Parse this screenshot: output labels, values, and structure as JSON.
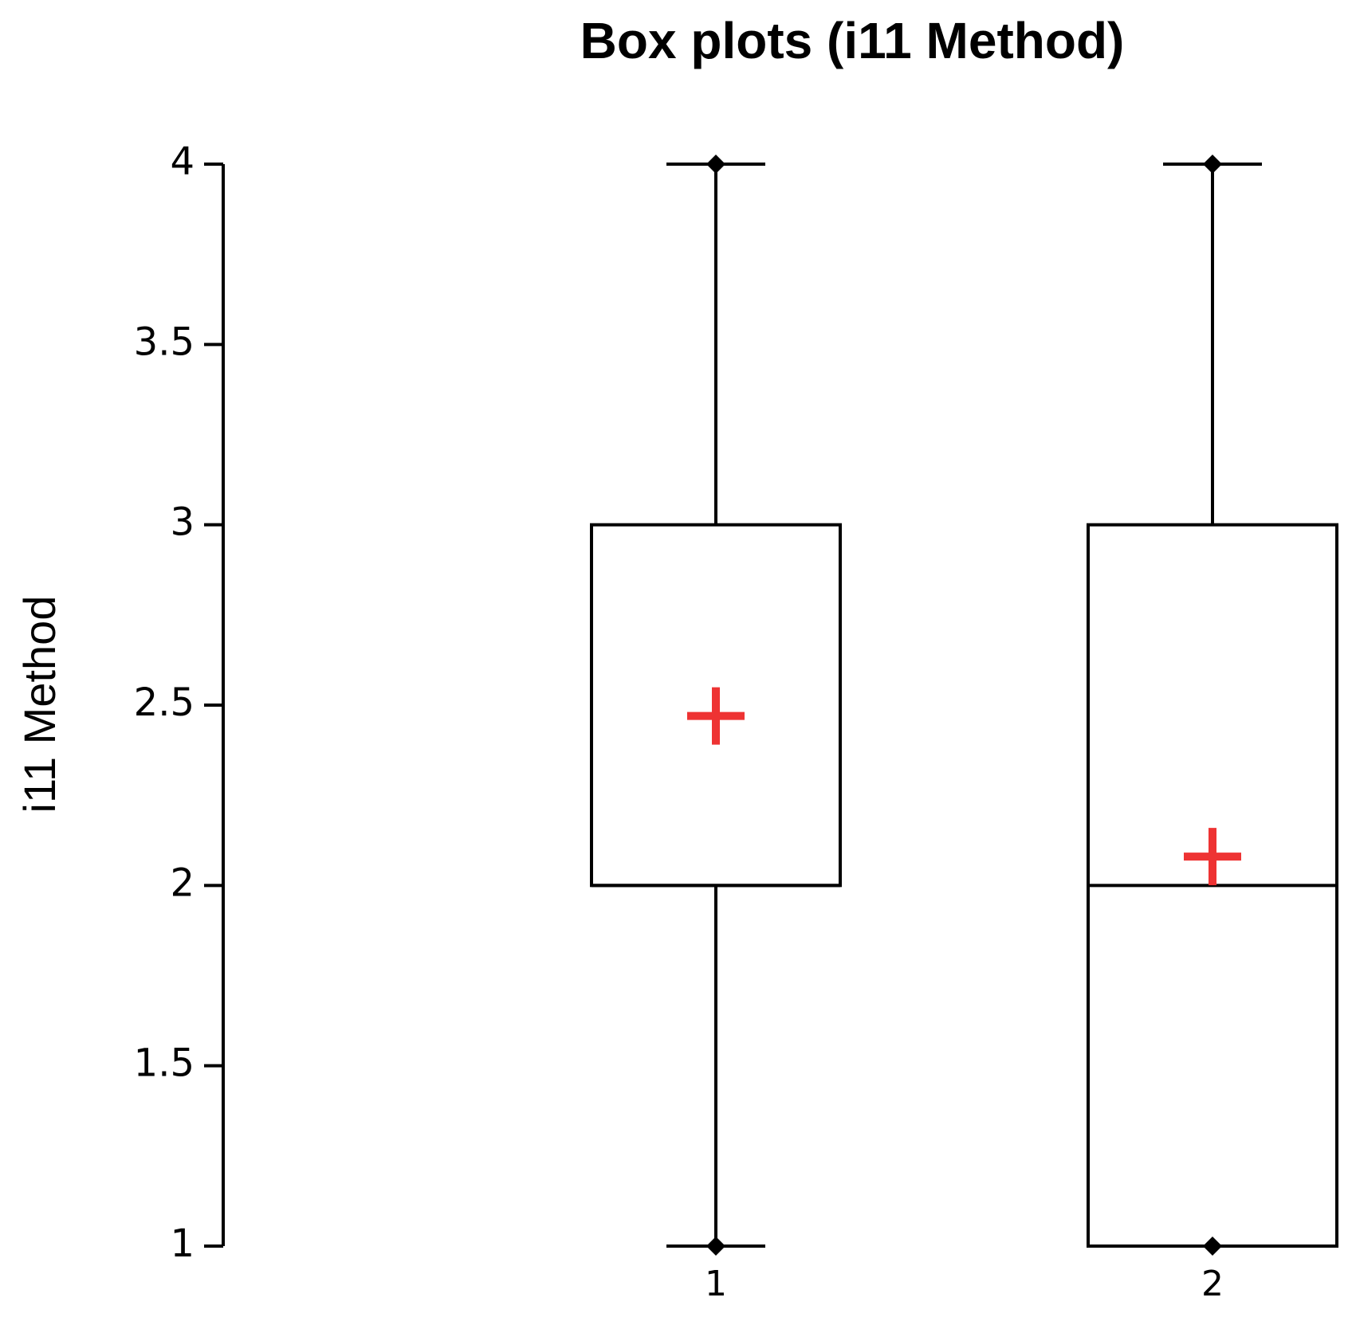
{
  "chart_data": {
    "type": "box",
    "title": "Box plots (i11 Method)",
    "y_label": "i11 Method",
    "categories": [
      "1",
      "2"
    ],
    "boxes": [
      {
        "min": 1,
        "q1": 2,
        "median": 2,
        "q3": 3,
        "max": 4,
        "mean": 2.47
      },
      {
        "min": 1,
        "q1": 1,
        "median": 2,
        "q3": 3,
        "max": 4,
        "mean": 2.08
      }
    ],
    "color": "#000000",
    "mean_color": "#ee3333",
    "ylim": [
      1,
      4
    ],
    "yticks": [
      1,
      1.5,
      2,
      2.5,
      3,
      3.5,
      4
    ]
  }
}
